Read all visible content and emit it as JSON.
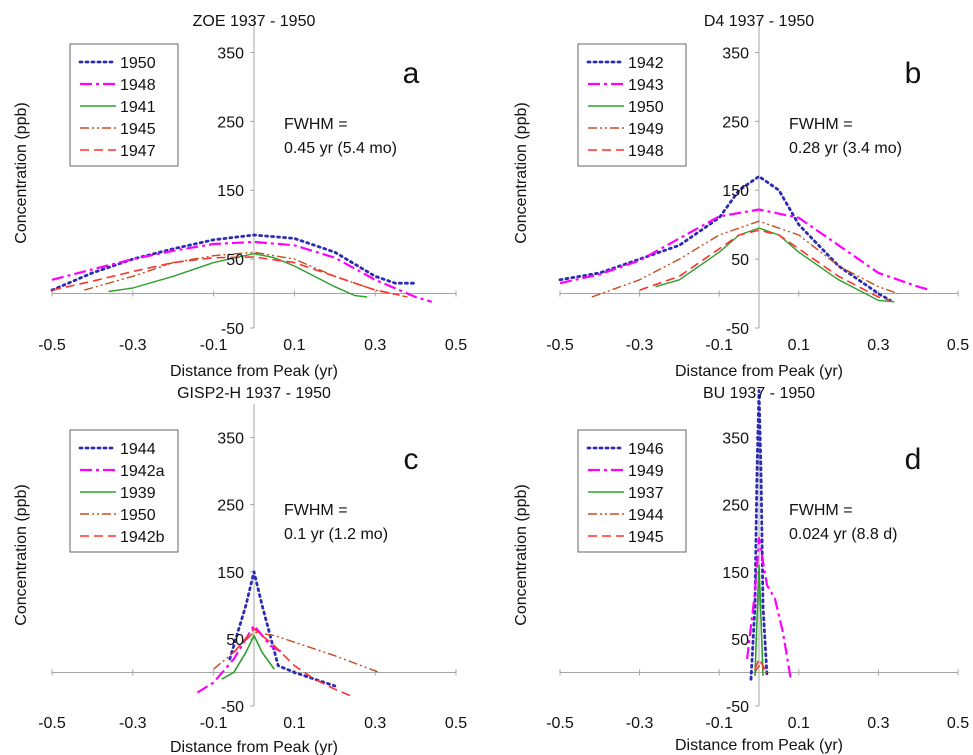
{
  "chart_data": [
    {
      "type": "line",
      "letter": "a",
      "title": "ZOE 1937 - 1950",
      "xlabel": "Distance from Peak (yr)",
      "ylabel": "Concentration (ppb)",
      "xlim": [
        -0.5,
        0.5
      ],
      "ylim": [
        -50,
        400
      ],
      "x_ticks": [
        "-0.5",
        "-0.3",
        "-0.1",
        "0.1",
        "0.3",
        "0.5"
      ],
      "y_ticks": [
        "350",
        "250",
        "150",
        "50",
        "-50"
      ],
      "annotation": [
        "FWHM =",
        "0.45 yr (5.4 mo)"
      ],
      "legend_position": "top-left",
      "series": [
        {
          "name": "1950",
          "color": "#2b2bb3",
          "dash": "dot",
          "width": 2.8,
          "points": [
            [
              -0.5,
              5
            ],
            [
              -0.4,
              30
            ],
            [
              -0.3,
              50
            ],
            [
              -0.2,
              65
            ],
            [
              -0.1,
              78
            ],
            [
              0,
              85
            ],
            [
              0.1,
              80
            ],
            [
              0.2,
              60
            ],
            [
              0.3,
              25
            ],
            [
              0.35,
              15
            ],
            [
              0.4,
              15
            ]
          ]
        },
        {
          "name": "1948",
          "color": "#ff00ff",
          "dash": "dashdot",
          "width": 2.2,
          "points": [
            [
              -0.5,
              20
            ],
            [
              -0.4,
              35
            ],
            [
              -0.3,
              50
            ],
            [
              -0.2,
              62
            ],
            [
              -0.1,
              72
            ],
            [
              0,
              75
            ],
            [
              0.1,
              70
            ],
            [
              0.2,
              52
            ],
            [
              0.3,
              20
            ],
            [
              0.4,
              -5
            ],
            [
              0.44,
              -12
            ]
          ]
        },
        {
          "name": "1941",
          "color": "#2ca02c",
          "dash": "solid",
          "width": 1.4,
          "points": [
            [
              -0.36,
              3
            ],
            [
              -0.3,
              8
            ],
            [
              -0.2,
              25
            ],
            [
              -0.1,
              45
            ],
            [
              0,
              58
            ],
            [
              0.05,
              52
            ],
            [
              0.1,
              40
            ],
            [
              0.2,
              10
            ],
            [
              0.25,
              -3
            ],
            [
              0.28,
              -5
            ]
          ]
        },
        {
          "name": "1945",
          "color": "#c05020",
          "dash": "dashdotdot",
          "width": 1.4,
          "points": [
            [
              -0.42,
              5
            ],
            [
              -0.3,
              25
            ],
            [
              -0.2,
              45
            ],
            [
              -0.1,
              55
            ],
            [
              0,
              60
            ],
            [
              0.1,
              50
            ],
            [
              0.2,
              25
            ],
            [
              0.3,
              5
            ],
            [
              0.38,
              -5
            ]
          ]
        },
        {
          "name": "1947",
          "color": "#ff3030",
          "dash": "dash",
          "width": 1.6,
          "points": [
            [
              -0.5,
              5
            ],
            [
              -0.4,
              18
            ],
            [
              -0.3,
              32
            ],
            [
              -0.2,
              45
            ],
            [
              -0.1,
              52
            ],
            [
              0,
              53
            ],
            [
              0.1,
              45
            ],
            [
              0.2,
              25
            ],
            [
              0.3,
              5
            ],
            [
              0.36,
              -2
            ]
          ]
        }
      ]
    },
    {
      "type": "line",
      "letter": "b",
      "title": "D4 1937 - 1950",
      "xlabel": "Distance from Peak (yr)",
      "ylabel": "Concentration (ppb)",
      "xlim": [
        -0.5,
        0.5
      ],
      "ylim": [
        -50,
        400
      ],
      "x_ticks": [
        "-0.5",
        "-0.3",
        "-0.1",
        "0.1",
        "0.3",
        "0.5"
      ],
      "y_ticks": [
        "350",
        "250",
        "150",
        "50",
        "-50"
      ],
      "annotation": [
        "FWHM =",
        "0.28 yr (3.4 mo)"
      ],
      "legend_position": "top-left",
      "series": [
        {
          "name": "1942",
          "color": "#2b2bb3",
          "dash": "dot",
          "width": 2.8,
          "points": [
            [
              -0.5,
              20
            ],
            [
              -0.4,
              30
            ],
            [
              -0.3,
              50
            ],
            [
              -0.2,
              70
            ],
            [
              -0.1,
              110
            ],
            [
              -0.05,
              150
            ],
            [
              0,
              170
            ],
            [
              0.05,
              150
            ],
            [
              0.1,
              100
            ],
            [
              0.2,
              40
            ],
            [
              0.3,
              0
            ],
            [
              0.33,
              -10
            ]
          ]
        },
        {
          "name": "1943",
          "color": "#ff00ff",
          "dash": "dashdot",
          "width": 2.2,
          "points": [
            [
              -0.5,
              15
            ],
            [
              -0.4,
              28
            ],
            [
              -0.3,
              48
            ],
            [
              -0.2,
              80
            ],
            [
              -0.1,
              112
            ],
            [
              0,
              122
            ],
            [
              0.1,
              110
            ],
            [
              0.2,
              70
            ],
            [
              0.3,
              30
            ],
            [
              0.4,
              10
            ],
            [
              0.43,
              5
            ]
          ]
        },
        {
          "name": "1950",
          "color": "#2ca02c",
          "dash": "solid",
          "width": 1.4,
          "points": [
            [
              -0.26,
              10
            ],
            [
              -0.2,
              20
            ],
            [
              -0.1,
              60
            ],
            [
              -0.05,
              85
            ],
            [
              0,
              95
            ],
            [
              0.05,
              85
            ],
            [
              0.1,
              60
            ],
            [
              0.2,
              20
            ],
            [
              0.3,
              -10
            ],
            [
              0.34,
              -12
            ]
          ]
        },
        {
          "name": "1949",
          "color": "#c05020",
          "dash": "dashdotdot",
          "width": 1.4,
          "points": [
            [
              -0.42,
              -5
            ],
            [
              -0.3,
              20
            ],
            [
              -0.2,
              50
            ],
            [
              -0.1,
              85
            ],
            [
              0,
              105
            ],
            [
              0.1,
              85
            ],
            [
              0.2,
              40
            ],
            [
              0.3,
              10
            ],
            [
              0.35,
              0
            ]
          ]
        },
        {
          "name": "1948",
          "color": "#ff3030",
          "dash": "dash",
          "width": 1.6,
          "points": [
            [
              -0.3,
              5
            ],
            [
              -0.2,
              25
            ],
            [
              -0.1,
              65
            ],
            [
              -0.05,
              85
            ],
            [
              0,
              92
            ],
            [
              0.05,
              85
            ],
            [
              0.1,
              65
            ],
            [
              0.2,
              25
            ],
            [
              0.3,
              -5
            ],
            [
              0.33,
              -10
            ]
          ]
        }
      ]
    },
    {
      "type": "line",
      "letter": "c",
      "title": "GISP2-H 1937 - 1950",
      "xlabel": "Distance from Peak (yr)",
      "ylabel": "Concentration (ppb)",
      "xlim": [
        -0.5,
        0.5
      ],
      "ylim": [
        -50,
        400
      ],
      "x_ticks": [
        "-0.5",
        "-0.3",
        "-0.1",
        "0.1",
        "0.3",
        "0.5"
      ],
      "y_ticks": [
        "350",
        "250",
        "150",
        "50",
        "-50"
      ],
      "annotation": [
        "FWHM =",
        "0.1 yr (1.2 mo)"
      ],
      "legend_position": "top-left",
      "series": [
        {
          "name": "1944",
          "color": "#2b2bb3",
          "dash": "dot",
          "width": 2.8,
          "points": [
            [
              -0.06,
              20
            ],
            [
              -0.02,
              100
            ],
            [
              0,
              150
            ],
            [
              0.02,
              100
            ],
            [
              0.06,
              10
            ],
            [
              0.1,
              0
            ],
            [
              0.2,
              -20
            ]
          ]
        },
        {
          "name": "1942a",
          "color": "#ff00ff",
          "dash": "dashdot",
          "width": 2.2,
          "points": [
            [
              -0.14,
              -30
            ],
            [
              -0.1,
              -15
            ],
            [
              -0.05,
              20
            ],
            [
              0,
              70
            ],
            [
              0.04,
              40
            ],
            [
              0.07,
              30
            ]
          ]
        },
        {
          "name": "1939",
          "color": "#2ca02c",
          "dash": "solid",
          "width": 1.6,
          "points": [
            [
              -0.08,
              -10
            ],
            [
              -0.05,
              0
            ],
            [
              -0.02,
              30
            ],
            [
              0,
              55
            ],
            [
              0.02,
              30
            ],
            [
              0.05,
              5
            ]
          ]
        },
        {
          "name": "1950",
          "color": "#c05020",
          "dash": "dashdotdot",
          "width": 1.4,
          "points": [
            [
              -0.1,
              5
            ],
            [
              -0.05,
              30
            ],
            [
              0,
              60
            ],
            [
              0.05,
              55
            ],
            [
              0.1,
              45
            ],
            [
              0.2,
              25
            ],
            [
              0.31,
              0
            ]
          ]
        },
        {
          "name": "1942b",
          "color": "#ff3030",
          "dash": "dash",
          "width": 1.6,
          "points": [
            [
              -0.05,
              30
            ],
            [
              0,
              65
            ],
            [
              0.05,
              40
            ],
            [
              0.1,
              10
            ],
            [
              0.15,
              -10
            ],
            [
              0.2,
              -25
            ],
            [
              0.24,
              -35
            ]
          ]
        }
      ]
    },
    {
      "type": "line",
      "letter": "d",
      "title": "BU 1937 - 1950",
      "xlabel": "Distance from Peak (yr)",
      "ylabel": "Concentration (ppb)",
      "xlim": [
        -0.5,
        0.5
      ],
      "ylim": [
        -50,
        400
      ],
      "x_ticks": [
        "-0.5",
        "-0.3",
        "-0.1",
        "0.1",
        "0.3",
        "0.5"
      ],
      "y_ticks": [
        "350",
        "250",
        "150",
        "50",
        "-50"
      ],
      "annotation": [
        "FWHM =",
        "0.024 yr (8.8 d)"
      ],
      "legend_position": "top-left",
      "series": [
        {
          "name": "1946",
          "color": "#2b2bb3",
          "dash": "dot",
          "width": 2.8,
          "points": [
            [
              -0.02,
              -10
            ],
            [
              -0.01,
              100
            ],
            [
              -0.005,
              300
            ],
            [
              0,
              420
            ],
            [
              0.005,
              300
            ],
            [
              0.01,
              100
            ],
            [
              0.02,
              -5
            ]
          ]
        },
        {
          "name": "1949",
          "color": "#ff00ff",
          "dash": "dashdot",
          "width": 2.2,
          "points": [
            [
              -0.03,
              20
            ],
            [
              -0.01,
              120
            ],
            [
              0,
              200
            ],
            [
              0.02,
              130
            ],
            [
              0.04,
              110
            ],
            [
              0.06,
              60
            ],
            [
              0.08,
              -10
            ]
          ]
        },
        {
          "name": "1937",
          "color": "#2ca02c",
          "dash": "solid",
          "width": 1.6,
          "points": [
            [
              -0.01,
              -5
            ],
            [
              -0.005,
              80
            ],
            [
              0,
              160
            ],
            [
              0.005,
              80
            ],
            [
              0.01,
              -5
            ]
          ]
        },
        {
          "name": "1944",
          "color": "#c05020",
          "dash": "dashdotdot",
          "width": 1.4,
          "points": [
            [
              -0.01,
              0
            ],
            [
              0,
              10
            ],
            [
              0.01,
              5
            ],
            [
              0.02,
              0
            ]
          ]
        },
        {
          "name": "1945",
          "color": "#ff3030",
          "dash": "dash",
          "width": 1.6,
          "points": [
            [
              -0.01,
              5
            ],
            [
              0,
              20
            ],
            [
              0.01,
              10
            ],
            [
              0.02,
              0
            ]
          ]
        }
      ]
    }
  ]
}
